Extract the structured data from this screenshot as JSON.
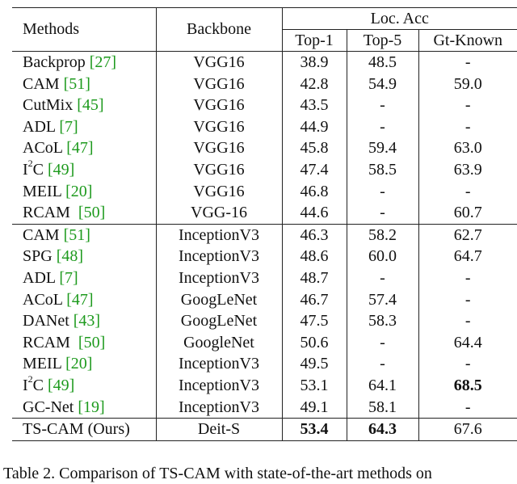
{
  "table": {
    "headers": {
      "methods": "Methods",
      "backbone": "Backbone",
      "loc_acc": "Loc. Acc",
      "top1": "Top-1",
      "top5": "Top-5",
      "gt_known": "Gt-Known"
    },
    "vgg_group": [
      {
        "method": "Backprop ",
        "ref": "[27]",
        "backbone": "VGG16",
        "top1": "38.9",
        "top5": "48.5",
        "gt": "-"
      },
      {
        "method": "CAM ",
        "ref": "[51]",
        "backbone": "VGG16",
        "top1": "42.8",
        "top5": "54.9",
        "gt": "59.0"
      },
      {
        "method": "CutMix ",
        "ref": "[45]",
        "backbone": "VGG16",
        "top1": "43.5",
        "top5": "-",
        "gt": "-"
      },
      {
        "method": "ADL ",
        "ref": "[7]",
        "backbone": "VGG16",
        "top1": "44.9",
        "top5": "-",
        "gt": "-"
      },
      {
        "method": "ACoL ",
        "ref": "[47]",
        "backbone": "VGG16",
        "top1": "45.8",
        "top5": "59.4",
        "gt": "63.0"
      },
      {
        "method_pre": "I",
        "method_sup": "2",
        "method_post": "C ",
        "ref": "[49]",
        "backbone": "VGG16",
        "top1": "47.4",
        "top5": "58.5",
        "gt": "63.9"
      },
      {
        "method": "MEIL ",
        "ref": "[20]",
        "backbone": "VGG16",
        "top1": "46.8",
        "top5": "-",
        "gt": "-"
      },
      {
        "method": "RCAM  ",
        "ref": "[50]",
        "backbone": "VGG-16",
        "top1": "44.6",
        "top5": "-",
        "gt": "60.7"
      }
    ],
    "inception_group": [
      {
        "method": "CAM ",
        "ref": "[51]",
        "backbone": "InceptionV3",
        "top1": "46.3",
        "top5": "58.2",
        "gt": "62.7"
      },
      {
        "method": "SPG ",
        "ref": "[48]",
        "backbone": "InceptionV3",
        "top1": "48.6",
        "top5": "60.0",
        "gt": "64.7"
      },
      {
        "method": "ADL ",
        "ref": "[7]",
        "backbone": "InceptionV3",
        "top1": "48.7",
        "top5": "-",
        "gt": "-"
      },
      {
        "method": "ACoL ",
        "ref": "[47]",
        "backbone": "GoogLeNet",
        "top1": "46.7",
        "top5": "57.4",
        "gt": "-"
      },
      {
        "method": "DANet ",
        "ref": "[43]",
        "backbone": "GoogLeNet",
        "top1": "47.5",
        "top5": "58.3",
        "gt": "-"
      },
      {
        "method": "RCAM  ",
        "ref": "[50]",
        "backbone": "GoogleNet",
        "top1": "50.6",
        "top5": "-",
        "gt": "64.4"
      },
      {
        "method": "MEIL ",
        "ref": "[20]",
        "backbone": "InceptionV3",
        "top1": "49.5",
        "top5": "-",
        "gt": "-"
      },
      {
        "method_pre": "I",
        "method_sup": "2",
        "method_post": "C ",
        "ref": "[49]",
        "backbone": "InceptionV3",
        "top1": "53.1",
        "top5": "64.1",
        "gt": "68.5"
      },
      {
        "method": "GC-Net ",
        "ref": "[19]",
        "backbone": "InceptionV3",
        "top1": "49.1",
        "top5": "58.1",
        "gt": "-"
      }
    ],
    "ours": {
      "method": "TS-CAM (Ours)",
      "backbone": "Deit-S",
      "top1": "53.4",
      "top5": "64.3",
      "gt": "67.6"
    }
  },
  "caption": "Table 2. Comparison of TS-CAM with state-of-the-art methods on"
}
